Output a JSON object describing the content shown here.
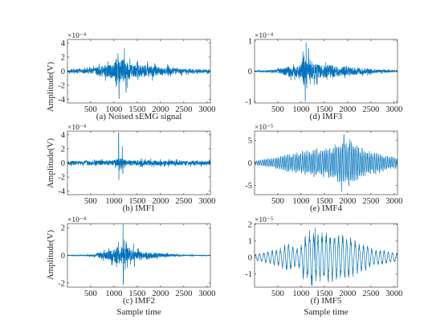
{
  "chart_data": [
    {
      "type": "line",
      "panel_label": "(a) Noised sEMG signal",
      "ylabel": "Amplitude(V)",
      "exponent": "×10⁻⁴",
      "xlim": [
        1,
        3072
      ],
      "ylim": [
        -4.5,
        4.5
      ],
      "x_ticks": [
        500,
        1000,
        1500,
        2000,
        2500,
        3000
      ],
      "y_ticks": [
        -4,
        -2,
        0,
        2,
        4
      ],
      "series_color": "#0072BD",
      "series": [
        {
          "envelope": {
            "x": [
              1,
              300,
              550,
              700,
              900,
              1000,
              1060,
              1080,
              1150,
              1230,
              1300,
              1400,
              1600,
              1800,
              2000,
              2200,
              2400,
              2600,
              2800,
              3072
            ],
            "amp": [
              0.35,
              0.45,
              0.7,
              1.3,
              1.6,
              2.0,
              4.0,
              3.5,
              2.5,
              3.5,
              2.5,
              1.5,
              1.5,
              1.4,
              1.1,
              0.9,
              0.7,
              0.5,
              0.45,
              0.4
            ]
          },
          "spikes": [
            {
              "x": 1108,
              "y": 4.4
            },
            {
              "x": 1110,
              "y": -3.9
            },
            {
              "x": 1225,
              "y": 3.2
            },
            {
              "x": 1260,
              "y": -3.0
            }
          ]
        }
      ]
    },
    {
      "type": "line",
      "panel_label": "(d) IMF3",
      "ylabel": "",
      "exponent": "×10⁻⁴",
      "xlim": [
        1,
        3072
      ],
      "ylim": [
        -1.05,
        1.05
      ],
      "x_ticks": [
        500,
        1000,
        1500,
        2000,
        2500,
        3000
      ],
      "y_ticks": [
        -1,
        0,
        1
      ],
      "series_color": "#0072BD",
      "series": [
        {
          "envelope": {
            "x": [
              1,
              300,
              550,
              700,
              900,
              1000,
              1060,
              1080,
              1150,
              1230,
              1300,
              1400,
              1600,
              1800,
              2000,
              2200,
              2400,
              2600,
              2800,
              3072
            ],
            "amp": [
              0.04,
              0.05,
              0.15,
              0.28,
              0.32,
              0.4,
              0.85,
              0.75,
              0.55,
              0.6,
              0.5,
              0.4,
              0.35,
              0.3,
              0.25,
              0.2,
              0.15,
              0.1,
              0.08,
              0.06
            ]
          },
          "spikes": [
            {
              "x": 1090,
              "y": -1.0
            },
            {
              "x": 1108,
              "y": 0.95
            },
            {
              "x": 1160,
              "y": 0.75
            }
          ]
        }
      ]
    },
    {
      "type": "line",
      "panel_label": "(b) IMF1",
      "ylabel": "Amplitude(V)",
      "exponent": "×10⁻⁴",
      "xlim": [
        1,
        3072
      ],
      "ylim": [
        -4.5,
        4.5
      ],
      "x_ticks": [
        500,
        1000,
        1500,
        2000,
        2500,
        3000
      ],
      "y_ticks": [
        -4,
        -2,
        0,
        2,
        4
      ],
      "series_color": "#0072BD",
      "series": [
        {
          "envelope": {
            "x": [
              1,
              300,
              550,
              700,
              900,
              1000,
              1060,
              1080,
              1150,
              1230,
              1300,
              1400,
              1600,
              1800,
              2000,
              2200,
              2400,
              2600,
              2800,
              3072
            ],
            "amp": [
              0.45,
              0.5,
              0.55,
              0.6,
              0.6,
              0.65,
              1.0,
              1.0,
              1.3,
              0.8,
              0.7,
              0.6,
              0.6,
              0.6,
              0.6,
              0.55,
              0.55,
              0.5,
              0.5,
              0.5
            ]
          },
          "spikes": [
            {
              "x": 1100,
              "y": 4.3
            },
            {
              "x": 1105,
              "y": -2.4
            },
            {
              "x": 1180,
              "y": 2.3
            },
            {
              "x": 1190,
              "y": -1.5
            }
          ]
        }
      ]
    },
    {
      "type": "line",
      "panel_label": "(e) IMF4",
      "ylabel": "",
      "exponent": "×10⁻⁵",
      "xlim": [
        1,
        3072
      ],
      "ylim": [
        -7,
        7
      ],
      "x_ticks": [
        500,
        1000,
        1500,
        2000,
        2500,
        3000
      ],
      "y_ticks": [
        -5,
        0,
        5
      ],
      "series_color": "#0072BD",
      "series": [
        {
          "envelope": {
            "x": [
              1,
              300,
              550,
              700,
              900,
              1000,
              1060,
              1080,
              1150,
              1230,
              1300,
              1400,
              1600,
              1800,
              2000,
              2200,
              2400,
              2600,
              2800,
              3072
            ],
            "amp": [
              0.5,
              1.0,
              1.5,
              2.0,
              2.3,
              2.5,
              2.8,
              3.0,
              2.8,
              3.3,
              3.5,
              3.0,
              3.5,
              4.5,
              5.5,
              4.0,
              3.0,
              2.5,
              1.8,
              1.2
            ]
          },
          "spikes": [
            {
              "x": 1870,
              "y": -6.3
            },
            {
              "x": 1920,
              "y": 6.2
            },
            {
              "x": 2050,
              "y": 5.2
            }
          ]
        }
      ]
    },
    {
      "type": "line",
      "panel_label": "(c) IMF2",
      "ylabel": "Amplitude(V)",
      "exponent": "×10⁻⁴",
      "xlim": [
        1,
        3072
      ],
      "ylim": [
        -2.3,
        2.3
      ],
      "x_ticks": [
        500,
        1000,
        1500,
        2000,
        2500,
        3000
      ],
      "y_ticks": [
        -2,
        0,
        2
      ],
      "series_color": "#0072BD",
      "series": [
        {
          "envelope": {
            "x": [
              1,
              300,
              550,
              700,
              900,
              1000,
              1060,
              1080,
              1150,
              1230,
              1300,
              1400,
              1600,
              1800,
              2000,
              2200,
              2400,
              2600,
              2800,
              3072
            ],
            "amp": [
              0.05,
              0.06,
              0.12,
              0.35,
              0.6,
              0.8,
              1.1,
              1.0,
              0.9,
              1.2,
              0.9,
              0.6,
              0.45,
              0.35,
              0.25,
              0.15,
              0.1,
              0.08,
              0.06,
              0.05
            ]
          },
          "spikes": [
            {
              "x": 1195,
              "y": 2.3
            },
            {
              "x": 1200,
              "y": -2.1
            },
            {
              "x": 1420,
              "y": 0.85
            },
            {
              "x": 1440,
              "y": -0.8
            }
          ]
        }
      ]
    },
    {
      "type": "line",
      "panel_label": "(f) IMF5",
      "ylabel": "",
      "exponent": "×10⁻⁵",
      "xlim": [
        1,
        3072
      ],
      "ylim": [
        -1.8,
        2.05
      ],
      "x_ticks": [
        500,
        1000,
        1500,
        2000,
        2500,
        3000
      ],
      "y_ticks": [
        -1,
        0,
        1,
        2
      ],
      "series_color": "#0072BD",
      "series": [
        {
          "envelope": {
            "x": [
              1,
              300,
              550,
              700,
              900,
              1000,
              1060,
              1080,
              1150,
              1230,
              1300,
              1400,
              1600,
              1800,
              2000,
              2200,
              2400,
              2600,
              2800,
              3072
            ],
            "amp": [
              0.2,
              0.4,
              0.6,
              0.9,
              0.6,
              0.8,
              1.5,
              1.3,
              1.6,
              1.8,
              1.4,
              1.6,
              1.6,
              1.4,
              1.5,
              1.0,
              0.8,
              0.5,
              0.45,
              0.3
            ]
          },
          "spikes": [
            {
              "x": 1240,
              "y": -1.7
            },
            {
              "x": 1300,
              "y": 1.8
            }
          ]
        }
      ]
    }
  ],
  "xlabel": "Sample time"
}
